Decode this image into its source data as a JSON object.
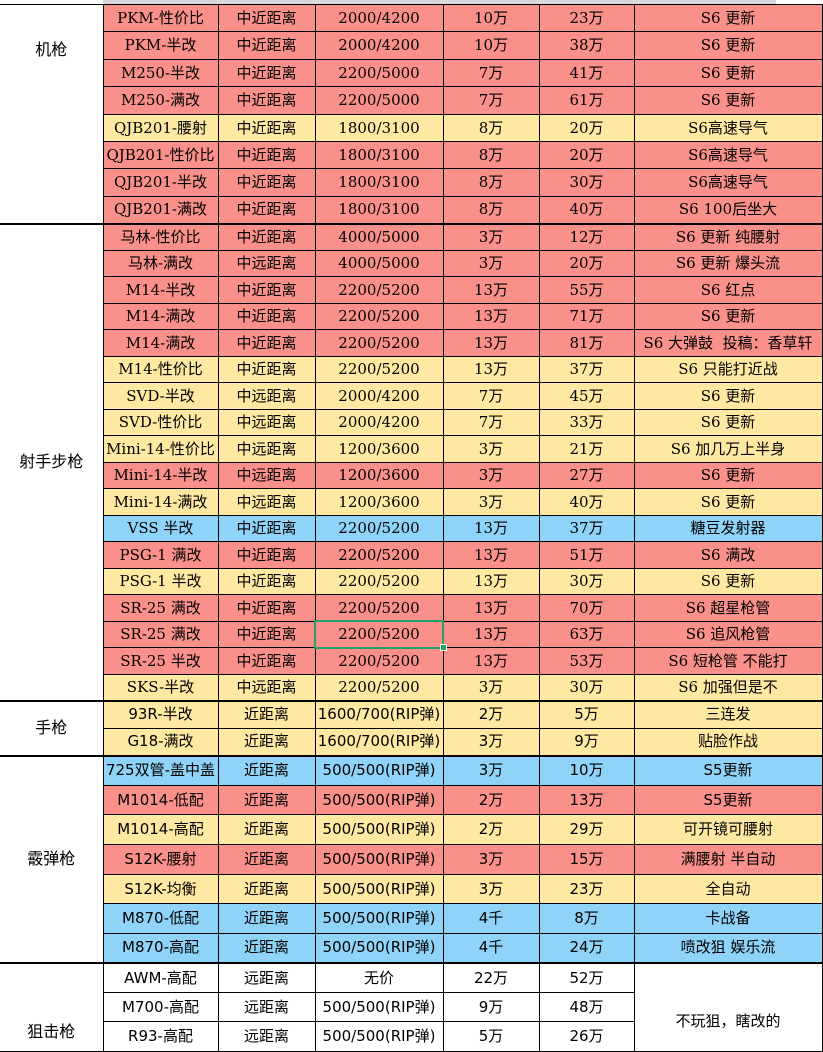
{
  "palette": {
    "red": "#FA908A",
    "yellow": "#FFE9A2",
    "blue": "#8FD3F8",
    "white_row": "#FFFFFF",
    "grid": "#000000",
    "text": "#000000",
    "selection": "#23A167",
    "top_strip": "#D8D8D8"
  },
  "selection": {
    "group_index": 1,
    "row_index": 15,
    "column": "ammo_price",
    "value": "2200/5200"
  },
  "table": {
    "groups": [
      {
        "category": "机枪",
        "font": "song",
        "label_align": "top",
        "rows": [
          {
            "name": "PKM-性价比",
            "range": "中近距离",
            "ammo_price": "2000/4200",
            "build_cost": "10万",
            "total_cost": "23万",
            "note": "S6 更新",
            "fill": "red",
            "font": "song"
          },
          {
            "name": "PKM-半改",
            "range": "中近距离",
            "ammo_price": "2000/4200",
            "build_cost": "10万",
            "total_cost": "38万",
            "note": "S6 更新",
            "fill": "red",
            "font": "song"
          },
          {
            "name": "M250-半改",
            "range": "中近距离",
            "ammo_price": "2200/5000",
            "build_cost": "7万",
            "total_cost": "41万",
            "note": "S6 更新",
            "fill": "red",
            "font": "song"
          },
          {
            "name": "M250-满改",
            "range": "中近距离",
            "ammo_price": "2200/5000",
            "build_cost": "7万",
            "total_cost": "61万",
            "note": "S6 更新",
            "fill": "red",
            "font": "song"
          },
          {
            "name": "QJB201-腰射",
            "range": "中近距离",
            "ammo_price": "1800/3100",
            "build_cost": "8万",
            "total_cost": "20万",
            "note": "S6高速导气",
            "fill": "yellow",
            "font": "song"
          },
          {
            "name": "QJB201-性价比",
            "range": "中近距离",
            "ammo_price": "1800/3100",
            "build_cost": "8万",
            "total_cost": "20万",
            "note": "S6高速导气",
            "fill": "red",
            "font": "song"
          },
          {
            "name": "QJB201-半改",
            "range": "中近距离",
            "ammo_price": "1800/3100",
            "build_cost": "8万",
            "total_cost": "30万",
            "note": "S6高速导气",
            "fill": "red",
            "font": "song"
          },
          {
            "name": "QJB201-满改",
            "range": "中近距离",
            "ammo_price": "1800/3100",
            "build_cost": "8万",
            "total_cost": "40万",
            "note": "S6 100后坐大",
            "fill": "red",
            "font": "song"
          }
        ]
      },
      {
        "category": "射手步枪",
        "font": "song",
        "label_align": "middle",
        "rows": [
          {
            "name": "马林-性价比",
            "range": "中近距离",
            "ammo_price": "4000/5000",
            "build_cost": "3万",
            "total_cost": "12万",
            "note": "S6 更新 纯腰射",
            "fill": "red",
            "font": "song"
          },
          {
            "name": "马林-满改",
            "range": "中远距离",
            "ammo_price": "4000/5000",
            "build_cost": "3万",
            "total_cost": "20万",
            "note": "S6 更新 爆头流",
            "fill": "red",
            "font": "song"
          },
          {
            "name": "M14-半改",
            "range": "中近距离",
            "ammo_price": "2200/5200",
            "build_cost": "13万",
            "total_cost": "55万",
            "note": "S6 红点",
            "fill": "red",
            "font": "song"
          },
          {
            "name": "M14-满改",
            "range": "中近距离",
            "ammo_price": "2200/5200",
            "build_cost": "13万",
            "total_cost": "71万",
            "note": "S6 更新",
            "fill": "red",
            "font": "song"
          },
          {
            "name": "M14-满改",
            "range": "中近距离",
            "ammo_price": "2200/5200",
            "build_cost": "13万",
            "total_cost": "81万",
            "note": "S6 大弹鼓  投稿：香草轩",
            "fill": "red",
            "font": "song"
          },
          {
            "name": "M14-性价比",
            "range": "中近距离",
            "ammo_price": "2200/5200",
            "build_cost": "13万",
            "total_cost": "37万",
            "note": "S6 只能打近战",
            "fill": "yellow",
            "font": "song"
          },
          {
            "name": "SVD-半改",
            "range": "中远距离",
            "ammo_price": "2000/4200",
            "build_cost": "7万",
            "total_cost": "45万",
            "note": "S6 更新",
            "fill": "yellow",
            "font": "song"
          },
          {
            "name": "SVD-性价比",
            "range": "中远距离",
            "ammo_price": "2000/4200",
            "build_cost": "7万",
            "total_cost": "33万",
            "note": "S6 更新",
            "fill": "yellow",
            "font": "song"
          },
          {
            "name": "Mini-14-性价比",
            "range": "中远距离",
            "ammo_price": "1200/3600",
            "build_cost": "3万",
            "total_cost": "21万",
            "note": "S6 加几万上半身",
            "fill": "yellow",
            "font": "song"
          },
          {
            "name": "Mini-14-半改",
            "range": "中远距离",
            "ammo_price": "1200/3600",
            "build_cost": "3万",
            "total_cost": "27万",
            "note": "S6 更新",
            "fill": "red",
            "font": "song"
          },
          {
            "name": "Mini-14-满改",
            "range": "中远距离",
            "ammo_price": "1200/3600",
            "build_cost": "3万",
            "total_cost": "40万",
            "note": "S6 更新",
            "fill": "yellow",
            "font": "song"
          },
          {
            "name": "VSS 半改",
            "range": "中近距离",
            "ammo_price": "2200/5200",
            "build_cost": "13万",
            "total_cost": "37万",
            "note": "糖豆发射器",
            "fill": "blue",
            "font": "song"
          },
          {
            "name": "PSG-1 满改",
            "range": "中近距离",
            "ammo_price": "2200/5200",
            "build_cost": "13万",
            "total_cost": "51万",
            "note": "S6 满改",
            "fill": "red",
            "font": "song"
          },
          {
            "name": "PSG-1 半改",
            "range": "中近距离",
            "ammo_price": "2200/5200",
            "build_cost": "13万",
            "total_cost": "30万",
            "note": "S6 更新",
            "fill": "yellow",
            "font": "song"
          },
          {
            "name": "SR-25 满改",
            "range": "中近距离",
            "ammo_price": "2200/5200",
            "build_cost": "13万",
            "total_cost": "70万",
            "note": "S6 超星枪管",
            "fill": "red",
            "font": "song"
          },
          {
            "name": "SR-25 满改",
            "range": "中近距离",
            "ammo_price": "2200/5200",
            "build_cost": "13万",
            "total_cost": "63万",
            "note": "S6 追风枪管",
            "fill": "red",
            "font": "song"
          },
          {
            "name": "SR-25 半改",
            "range": "中近距离",
            "ammo_price": "2200/5200",
            "build_cost": "13万",
            "total_cost": "53万",
            "note": "S6 短枪管 不能打",
            "fill": "red",
            "font": "song"
          },
          {
            "name": "SKS-半改",
            "range": "中远距离",
            "ammo_price": "2200/5200",
            "build_cost": "3万",
            "total_cost": "30万",
            "note": "S6 加强但是不",
            "fill": "yellow",
            "font": "song"
          }
        ]
      },
      {
        "category": "手枪",
        "font": "song",
        "label_align": "middle",
        "rows": [
          {
            "name": "93R-半改",
            "range": "近距离",
            "ammo_price": "1600/700(RIP弹)",
            "build_cost": "2万",
            "total_cost": "5万",
            "note": "三连发",
            "fill": "yellow",
            "font": "sans"
          },
          {
            "name": "G18-满改",
            "range": "近距离",
            "ammo_price": "1600/700(RIP弹)",
            "build_cost": "3万",
            "total_cost": "9万",
            "note": "贴脸作战",
            "fill": "yellow",
            "font": "sans"
          }
        ]
      },
      {
        "category": "霰弹枪",
        "font": "sans",
        "label_align": "middle",
        "rows": [
          {
            "name": "725双管-盖中盖",
            "range": "近距离",
            "ammo_price": "500/500(RIP弹)",
            "build_cost": "3万",
            "total_cost": "10万",
            "note": "S5更新",
            "fill": "blue",
            "font": "sans"
          },
          {
            "name": "M1014-低配",
            "range": "近距离",
            "ammo_price": "500/500(RIP弹)",
            "build_cost": "2万",
            "total_cost": "13万",
            "note": "S5更新",
            "fill": "red",
            "font": "sans"
          },
          {
            "name": "M1014-高配",
            "range": "近距离",
            "ammo_price": "500/500(RIP弹)",
            "build_cost": "2万",
            "total_cost": "29万",
            "note": "可开镜可腰射",
            "fill": "yellow",
            "font": "sans"
          },
          {
            "name": "S12K-腰射",
            "range": "近距离",
            "ammo_price": "500/500(RIP弹)",
            "build_cost": "3万",
            "total_cost": "15万",
            "note": "满腰射 半自动",
            "fill": "red",
            "font": "sans"
          },
          {
            "name": "S12K-均衡",
            "range": "近距离",
            "ammo_price": "500/500(RIP弹)",
            "build_cost": "3万",
            "total_cost": "23万",
            "note": "全自动",
            "fill": "yellow",
            "font": "sans"
          },
          {
            "name": "M870-低配",
            "range": "近距离",
            "ammo_price": "500/500(RIP弹)",
            "build_cost": "4千",
            "total_cost": "8万",
            "note": "卡战备",
            "fill": "blue",
            "font": "sans"
          },
          {
            "name": "M870-高配",
            "range": "近距离",
            "ammo_price": "500/500(RIP弹)",
            "build_cost": "4千",
            "total_cost": "24万",
            "note": "喷改狙 娱乐流",
            "fill": "blue",
            "font": "sans"
          }
        ]
      },
      {
        "category": "狙击枪",
        "font": "sans",
        "label_align": "bottom",
        "merged_note": "不玩狙，瞎改的",
        "rows": [
          {
            "name": "AWM-高配",
            "range": "远距离",
            "ammo_price": "无价",
            "build_cost": "22万",
            "total_cost": "52万",
            "fill": "white",
            "font": "sans"
          },
          {
            "name": "M700-高配",
            "range": "远距离",
            "ammo_price": "500/500(RIP弹)",
            "build_cost": "9万",
            "total_cost": "48万",
            "fill": "white",
            "font": "sans"
          },
          {
            "name": "R93-高配",
            "range": "远距离",
            "ammo_price": "500/500(RIP弹)",
            "build_cost": "5万",
            "total_cost": "26万",
            "fill": "white",
            "font": "sans"
          }
        ]
      }
    ]
  }
}
